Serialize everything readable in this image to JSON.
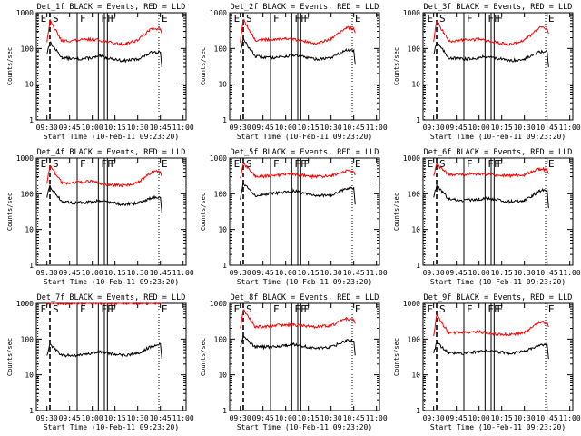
{
  "colors": {
    "events": "#000000",
    "lld": "#ff0000",
    "axis": "#000000",
    "background": "#ffffff"
  },
  "x_tick_labels": [
    "09:30",
    "09:45",
    "10:00",
    "10:15",
    "10:30",
    "10:45",
    "11:00"
  ],
  "y_tick_labels": [
    "1",
    "10",
    "100",
    "1000"
  ],
  "xlabel": "Start Time (10-Feb-11 09:23:20)",
  "ylabel": "Counts/sec",
  "markers": [
    {
      "label": "E",
      "time": "09:24",
      "style": "dotted"
    },
    {
      "label": "S",
      "time": "09:32",
      "style": "dashed"
    },
    {
      "label": "F",
      "time": "09:50",
      "style": "solid"
    },
    {
      "label": "F",
      "time": "10:04",
      "style": "solid"
    },
    {
      "label": "F",
      "time": "10:08",
      "style": "solid"
    },
    {
      "label": "F",
      "time": "10:10",
      "style": "solid"
    },
    {
      "label": "E",
      "time": "10:44",
      "style": "dotted"
    }
  ],
  "chart_data": [
    {
      "type": "line",
      "title": "Det_1f BLACK = Events, RED = LLD",
      "xlabel": "Start Time (10-Feb-11 09:23:20)",
      "ylabel": "Counts/sec",
      "xlim": [
        "09:23",
        "11:02"
      ],
      "ylim": [
        1,
        1000
      ],
      "yscale": "log",
      "x": [
        "09:23",
        "09:28",
        "09:30",
        "09:32",
        "09:40",
        "09:50",
        "10:00",
        "10:05",
        "10:10",
        "10:20",
        "10:30",
        "10:40",
        "10:45",
        "10:46"
      ],
      "series": [
        {
          "name": "BLACK = Events",
          "values": [
            null,
            null,
            70,
            150,
            55,
            50,
            55,
            60,
            55,
            45,
            50,
            80,
            80,
            30
          ]
        },
        {
          "name": "RED = LLD",
          "values": [
            null,
            null,
            150,
            600,
            160,
            170,
            180,
            170,
            150,
            130,
            170,
            380,
            350,
            260
          ]
        }
      ]
    },
    {
      "type": "line",
      "title": "Det_2f BLACK = Events, RED = LLD",
      "xlabel": "Start Time (10-Feb-11 09:23:20)",
      "ylabel": "Counts/sec",
      "xlim": [
        "09:23",
        "11:02"
      ],
      "ylim": [
        1,
        1000
      ],
      "yscale": "log",
      "x": [
        "09:23",
        "09:28",
        "09:30",
        "09:32",
        "09:40",
        "09:50",
        "10:00",
        "10:05",
        "10:10",
        "10:20",
        "10:30",
        "10:40",
        "10:45",
        "10:46"
      ],
      "series": [
        {
          "name": "BLACK = Events",
          "values": [
            null,
            null,
            80,
            180,
            60,
            55,
            60,
            65,
            60,
            50,
            55,
            90,
            85,
            35
          ]
        },
        {
          "name": "RED = LLD",
          "values": [
            null,
            null,
            160,
            650,
            170,
            180,
            190,
            180,
            160,
            140,
            180,
            380,
            360,
            270
          ]
        }
      ]
    },
    {
      "type": "line",
      "title": "Det_3f BLACK = Events, RED = LLD",
      "xlabel": "Start Time (10-Feb-11 09:23:20)",
      "ylabel": "Counts/sec",
      "xlim": [
        "09:23",
        "11:02"
      ],
      "ylim": [
        1,
        1000
      ],
      "yscale": "log",
      "x": [
        "09:23",
        "09:28",
        "09:30",
        "09:32",
        "09:40",
        "09:50",
        "10:00",
        "10:05",
        "10:10",
        "10:20",
        "10:30",
        "10:40",
        "10:45",
        "10:46"
      ],
      "series": [
        {
          "name": "BLACK = Events",
          "values": [
            null,
            null,
            70,
            150,
            55,
            50,
            55,
            60,
            55,
            45,
            50,
            80,
            80,
            30
          ]
        },
        {
          "name": "RED = LLD",
          "values": [
            null,
            null,
            150,
            600,
            160,
            170,
            180,
            170,
            150,
            130,
            170,
            380,
            350,
            260
          ]
        }
      ]
    },
    {
      "type": "line",
      "title": "Det_4f BLACK = Events, RED = LLD",
      "xlabel": "Start Time (10-Feb-11 09:23:20)",
      "ylabel": "Counts/sec",
      "xlim": [
        "09:23",
        "11:02"
      ],
      "ylim": [
        1,
        1000
      ],
      "yscale": "log",
      "x": [
        "09:23",
        "09:28",
        "09:30",
        "09:32",
        "09:40",
        "09:50",
        "10:00",
        "10:05",
        "10:10",
        "10:20",
        "10:30",
        "10:40",
        "10:45",
        "10:46"
      ],
      "series": [
        {
          "name": "BLACK = Events",
          "values": [
            null,
            null,
            80,
            160,
            60,
            55,
            60,
            65,
            60,
            50,
            55,
            80,
            80,
            30
          ]
        },
        {
          "name": "RED = LLD",
          "values": [
            null,
            null,
            200,
            600,
            200,
            210,
            220,
            200,
            180,
            170,
            200,
            420,
            400,
            300
          ]
        }
      ]
    },
    {
      "type": "line",
      "title": "Det_5f BLACK = Events, RED = LLD",
      "xlabel": "Start Time (10-Feb-11 09:23:20)",
      "ylabel": "Counts/sec",
      "xlim": [
        "09:23",
        "11:02"
      ],
      "ylim": [
        1,
        1000
      ],
      "yscale": "log",
      "x": [
        "09:23",
        "09:28",
        "09:30",
        "09:32",
        "09:40",
        "09:50",
        "10:00",
        "10:05",
        "10:10",
        "10:20",
        "10:30",
        "10:40",
        "10:45",
        "10:46"
      ],
      "series": [
        {
          "name": "BLACK = Events",
          "values": [
            null,
            null,
            70,
            200,
            90,
            100,
            110,
            120,
            110,
            90,
            90,
            140,
            140,
            50
          ]
        },
        {
          "name": "RED = LLD",
          "values": [
            null,
            null,
            260,
            700,
            300,
            320,
            350,
            350,
            330,
            300,
            320,
            450,
            420,
            330
          ]
        }
      ]
    },
    {
      "type": "line",
      "title": "Det_6f BLACK = Events, RED = LLD",
      "xlabel": "Start Time (10-Feb-11 09:23:20)",
      "ylabel": "Counts/sec",
      "xlim": [
        "09:23",
        "11:02"
      ],
      "ylim": [
        1,
        1000
      ],
      "yscale": "log",
      "x": [
        "09:23",
        "09:28",
        "09:30",
        "09:32",
        "09:40",
        "09:50",
        "10:00",
        "10:05",
        "10:10",
        "10:20",
        "10:30",
        "10:40",
        "10:45",
        "10:46"
      ],
      "series": [
        {
          "name": "BLACK = Events",
          "values": [
            null,
            null,
            80,
            170,
            70,
            65,
            70,
            75,
            70,
            60,
            65,
            120,
            130,
            40
          ]
        },
        {
          "name": "RED = LLD",
          "values": [
            null,
            null,
            320,
            650,
            340,
            350,
            360,
            350,
            330,
            320,
            340,
            500,
            460,
            360
          ]
        }
      ]
    },
    {
      "type": "line",
      "title": "Det_7f BLACK = Events, RED = LLD",
      "xlabel": "Start Time (10-Feb-11 09:23:20)",
      "ylabel": "Counts/sec",
      "xlim": [
        "09:23",
        "11:02"
      ],
      "ylim": [
        1,
        1000
      ],
      "yscale": "log",
      "x": [
        "09:23",
        "09:28",
        "09:30",
        "09:32",
        "09:40",
        "09:50",
        "10:00",
        "10:05",
        "10:10",
        "10:20",
        "10:30",
        "10:40",
        "10:45",
        "10:46"
      ],
      "series": [
        {
          "name": "BLACK = Events",
          "values": [
            null,
            null,
            35,
            70,
            35,
            35,
            40,
            45,
            40,
            35,
            40,
            65,
            75,
            28
          ]
        },
        {
          "name": "RED = LLD",
          "values": [
            null,
            null,
            1000,
            1000,
            1000,
            1000,
            1000,
            1000,
            1000,
            1000,
            1000,
            1000,
            1000,
            1000
          ]
        }
      ]
    },
    {
      "type": "line",
      "title": "Det_8f BLACK = Events, RED = LLD",
      "xlabel": "Start Time (10-Feb-11 09:23:20)",
      "ylabel": "Counts/sec",
      "xlim": [
        "09:23",
        "11:02"
      ],
      "ylim": [
        1,
        1000
      ],
      "yscale": "log",
      "x": [
        "09:23",
        "09:28",
        "09:30",
        "09:32",
        "09:40",
        "09:50",
        "10:00",
        "10:05",
        "10:10",
        "10:20",
        "10:30",
        "10:40",
        "10:45",
        "10:46"
      ],
      "series": [
        {
          "name": "BLACK = Events",
          "values": [
            null,
            null,
            60,
            120,
            60,
            60,
            65,
            70,
            65,
            55,
            60,
            90,
            90,
            35
          ]
        },
        {
          "name": "RED = LLD",
          "values": [
            null,
            null,
            200,
            650,
            220,
            230,
            250,
            250,
            240,
            220,
            240,
            370,
            350,
            270
          ]
        }
      ]
    },
    {
      "type": "line",
      "title": "Det_9f BLACK = Events, RED = LLD",
      "xlabel": "Start Time (10-Feb-11 09:23:20)",
      "ylabel": "Counts/sec",
      "xlim": [
        "09:23",
        "11:02"
      ],
      "ylim": [
        1,
        1000
      ],
      "yscale": "log",
      "x": [
        "09:23",
        "09:28",
        "09:30",
        "09:32",
        "09:40",
        "09:50",
        "10:00",
        "10:05",
        "10:10",
        "10:20",
        "10:30",
        "10:40",
        "10:45",
        "10:46"
      ],
      "series": [
        {
          "name": "BLACK = Events",
          "values": [
            null,
            null,
            40,
            80,
            40,
            40,
            45,
            50,
            45,
            40,
            45,
            65,
            70,
            28
          ]
        },
        {
          "name": "RED = LLD",
          "values": [
            null,
            null,
            130,
            450,
            150,
            150,
            160,
            150,
            140,
            130,
            150,
            300,
            280,
            220
          ]
        }
      ]
    }
  ]
}
